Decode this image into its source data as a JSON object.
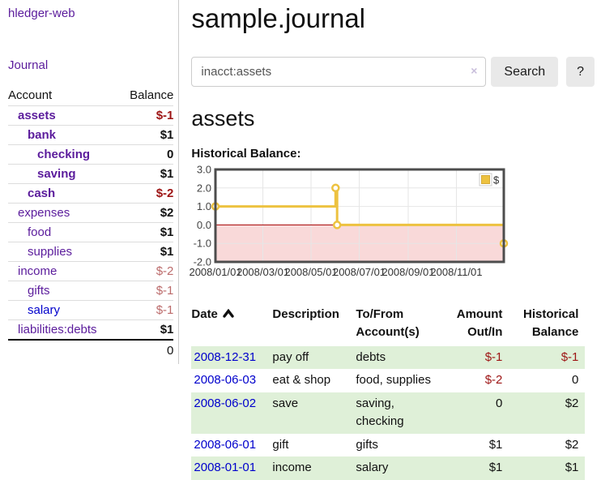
{
  "app": {
    "title": "hledger-web",
    "nav_journal": "Journal"
  },
  "sidebar": {
    "accounts_header": {
      "account": "Account",
      "balance": "Balance"
    },
    "accounts": [
      {
        "name": "assets",
        "depth": 1,
        "balance": "$-1",
        "bold": true,
        "negative": true,
        "soft": false
      },
      {
        "name": "bank",
        "depth": 2,
        "balance": "$1",
        "bold": true,
        "negative": false,
        "soft": false
      },
      {
        "name": "checking",
        "depth": 3,
        "balance": "0",
        "bold": true,
        "negative": false,
        "soft": false
      },
      {
        "name": "saving",
        "depth": 3,
        "balance": "$1",
        "bold": true,
        "negative": false,
        "soft": false
      },
      {
        "name": "cash",
        "depth": 2,
        "balance": "$-2",
        "bold": true,
        "negative": true,
        "soft": false
      },
      {
        "name": "expenses",
        "depth": 1,
        "balance": "$2",
        "bold": false,
        "negative": false,
        "soft": false
      },
      {
        "name": "food",
        "depth": 2,
        "balance": "$1",
        "bold": false,
        "negative": false,
        "soft": false
      },
      {
        "name": "supplies",
        "depth": 2,
        "balance": "$1",
        "bold": false,
        "negative": false,
        "soft": false
      },
      {
        "name": "income",
        "depth": 1,
        "balance": "$-2",
        "bold": false,
        "negative": true,
        "soft": true
      },
      {
        "name": "gifts",
        "depth": 2,
        "balance": "$-1",
        "bold": false,
        "negative": true,
        "soft": true
      },
      {
        "name": "salary",
        "depth": 2,
        "balance": "$-1",
        "bold": false,
        "negative": true,
        "soft": true,
        "link_color": "blue"
      },
      {
        "name": "liabilities:debts",
        "depth": 1,
        "balance": "$1",
        "bold": false,
        "negative": false,
        "soft": false
      }
    ],
    "total": "0"
  },
  "header": {
    "title": "sample.journal"
  },
  "search": {
    "value": "inacct:assets",
    "clear_icon": "×",
    "button": "Search",
    "help_button": "?"
  },
  "main": {
    "account_heading": "assets",
    "chart_label": "Historical Balance:"
  },
  "chart_data": {
    "type": "line",
    "title": "Historical Balance:",
    "step": true,
    "series": [
      {
        "name": "$",
        "color": "#edc240",
        "points": [
          [
            "2008-01-01",
            1
          ],
          [
            "2008-06-01",
            2
          ],
          [
            "2008-06-03",
            0
          ],
          [
            "2008-12-31",
            -1
          ]
        ]
      }
    ],
    "xlim": [
      "2008-01-01",
      "2008-12-31"
    ],
    "ylim": [
      -2,
      3
    ],
    "x_ticks": [
      "2008/01/01",
      "2008/03/01",
      "2008/05/01",
      "2008/07/01",
      "2008/09/01",
      "2008/11/01"
    ],
    "y_ticks": [
      3.0,
      2.0,
      1.0,
      0.0,
      -1.0,
      -2.0
    ],
    "grid": true,
    "legend_position": "top-right",
    "negative_region_color": "#f9d9d9",
    "zero_line_color": "#a40000"
  },
  "transactions": {
    "columns": [
      {
        "label": "Date",
        "sort": "asc",
        "align": "left"
      },
      {
        "label": "Description",
        "align": "left"
      },
      {
        "label": "To/From Account(s)",
        "align": "left"
      },
      {
        "label": "Amount Out/In",
        "align": "right"
      },
      {
        "label": "Historical Balance",
        "align": "right"
      }
    ],
    "rows": [
      {
        "date": "2008-12-31",
        "description": "pay off",
        "accounts": "debts",
        "amount": "$-1",
        "balance": "$-1"
      },
      {
        "date": "2008-06-03",
        "description": "eat & shop",
        "accounts": "food, supplies",
        "amount": "$-2",
        "balance": "0"
      },
      {
        "date": "2008-06-02",
        "description": "save",
        "accounts": "saving, checking",
        "amount": "0",
        "balance": "$2"
      },
      {
        "date": "2008-06-01",
        "description": "gift",
        "accounts": "gifts",
        "amount": "$1",
        "balance": "$2"
      },
      {
        "date": "2008-01-01",
        "description": "income",
        "accounts": "salary",
        "amount": "$1",
        "balance": "$1"
      }
    ]
  }
}
